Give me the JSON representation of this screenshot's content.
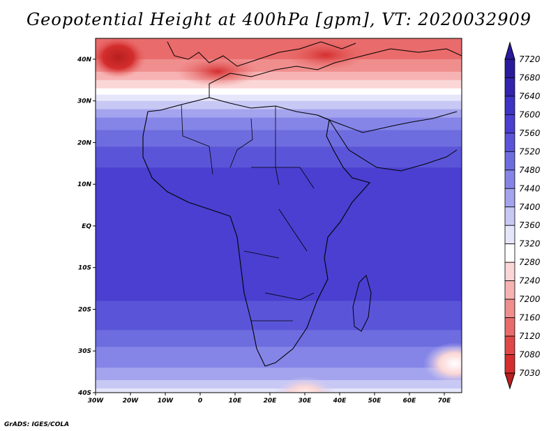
{
  "title": "Geopotential Height at 400hPa [gpm], VT: 2020032909",
  "credit": "GrADS: IGES/COLA",
  "map": {
    "lon_range": [
      -30,
      75
    ],
    "lat_range": [
      -40,
      45
    ],
    "lon_ticks": [
      {
        "value": -30,
        "label": "30W"
      },
      {
        "value": -20,
        "label": "20W"
      },
      {
        "value": -10,
        "label": "10W"
      },
      {
        "value": 0,
        "label": "0"
      },
      {
        "value": 10,
        "label": "10E"
      },
      {
        "value": 20,
        "label": "20E"
      },
      {
        "value": 30,
        "label": "30E"
      },
      {
        "value": 40,
        "label": "40E"
      },
      {
        "value": 50,
        "label": "50E"
      },
      {
        "value": 60,
        "label": "60E"
      },
      {
        "value": 70,
        "label": "70E"
      }
    ],
    "lat_ticks": [
      {
        "value": 40,
        "label": "40N"
      },
      {
        "value": 30,
        "label": "30N"
      },
      {
        "value": 20,
        "label": "20N"
      },
      {
        "value": 10,
        "label": "10N"
      },
      {
        "value": 0,
        "label": "EQ"
      },
      {
        "value": -10,
        "label": "10S"
      },
      {
        "value": -20,
        "label": "20S"
      },
      {
        "value": -30,
        "label": "30S"
      },
      {
        "value": -40,
        "label": "40S"
      }
    ],
    "field_bands": [
      {
        "lat_top": 45,
        "value": 7160
      },
      {
        "lat_top": 40,
        "value": 7200
      },
      {
        "lat_top": 37,
        "value": 7240
      },
      {
        "lat_top": 35,
        "value": 7280
      },
      {
        "lat_top": 33,
        "value": 7320
      },
      {
        "lat_top": 31.5,
        "value": 7360
      },
      {
        "lat_top": 30,
        "value": 7400
      },
      {
        "lat_top": 28,
        "value": 7440
      },
      {
        "lat_top": 26,
        "value": 7480
      },
      {
        "lat_top": 23,
        "value": 7520
      },
      {
        "lat_top": 19,
        "value": 7560
      },
      {
        "lat_top": 14,
        "value": 7600
      },
      {
        "lat_top": -18,
        "value": 7560
      },
      {
        "lat_top": -25,
        "value": 7520
      },
      {
        "lat_top": -29,
        "value": 7480
      },
      {
        "lat_top": -34,
        "value": 7440
      },
      {
        "lat_top": -37,
        "value": 7400
      },
      {
        "lat_top": -39,
        "value": 7360
      }
    ],
    "features": [
      {
        "name": "low-west-mediterranean",
        "lon": -23.5,
        "lat": 40.5,
        "value": 7080
      },
      {
        "name": "trough-north-africa",
        "lon": 5,
        "lat": 37,
        "value": 7120
      },
      {
        "name": "trough-turkey",
        "lon": 36,
        "lat": 41,
        "value": 7120
      },
      {
        "name": "trough-south-atlantic",
        "lon": 30,
        "lat": -41,
        "value": 7320
      },
      {
        "name": "trough-south-indian",
        "lon": 73,
        "lat": -33,
        "value": 7360
      }
    ]
  },
  "colorbar": {
    "levels": [
      "7720",
      "7680",
      "7640",
      "7600",
      "7560",
      "7520",
      "7480",
      "7440",
      "7400",
      "7360",
      "7320",
      "7280",
      "7240",
      "7200",
      "7160",
      "7120",
      "7080",
      "7030"
    ],
    "colors": [
      "#2a1a9c",
      "#3323ad",
      "#3d33c4",
      "#4a3fd0",
      "#5a55d8",
      "#6e6ddf",
      "#8585e8",
      "#a3a3ee",
      "#c8c8f5",
      "#e6e6fb",
      "#ffffff",
      "#fbd6d6",
      "#f7b3b3",
      "#f08e8e",
      "#e96b6b",
      "#e04848",
      "#d42e2e",
      "#b81f1f"
    ]
  }
}
